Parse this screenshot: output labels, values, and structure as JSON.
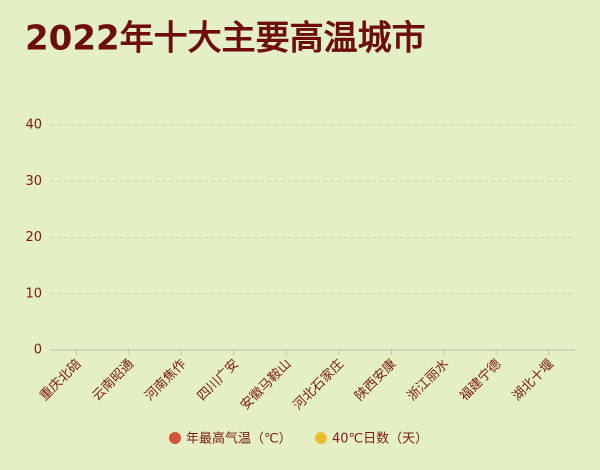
{
  "chart_data": {
    "type": "bar",
    "title": "2022年十大主要高温城市",
    "categories": [
      "重庆北碚",
      "云南昭通",
      "河南焦作",
      "四川广安",
      "安徽马鞍山",
      "河北石家庄",
      "陕西安康",
      "浙江丽水",
      "福建宁德",
      "湖北十堰"
    ],
    "series": [
      {
        "name": "年最高气温（℃）",
        "color": "#d4553a",
        "values": [
          null,
          null,
          null,
          null,
          null,
          null,
          null,
          null,
          null,
          null
        ]
      },
      {
        "name": "40℃日数（天）",
        "color": "#e6bf2e",
        "values": [
          null,
          null,
          null,
          null,
          null,
          null,
          null,
          null,
          null,
          null
        ]
      }
    ],
    "ylim": [
      0,
      40
    ],
    "yticks": [
      0,
      10,
      20,
      30,
      40
    ],
    "grid": true
  }
}
